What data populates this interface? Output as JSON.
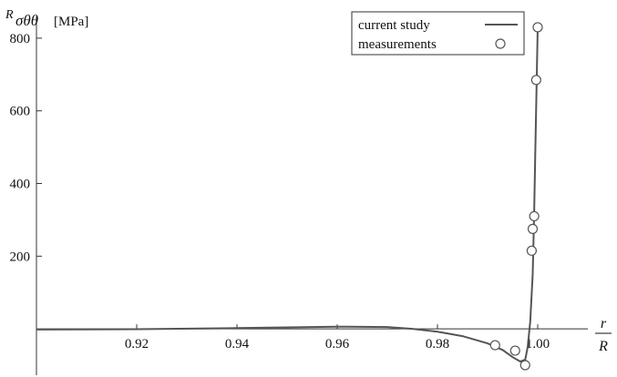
{
  "chart_data": {
    "type": "line",
    "ylabel_symbol": "R",
    "ylabel_subscript": "σθθ",
    "ylabel_unit": "[MPa]",
    "xlabel_numerator": "r",
    "xlabel_denominator": "R",
    "xlim": [
      0.9,
      1.01
    ],
    "ylim": [
      -110,
      880
    ],
    "x_ticks": [
      0.92,
      0.94,
      0.96,
      0.98,
      1.0
    ],
    "x_tick_labels": [
      "0.92",
      "0.94",
      "0.96",
      "0.98",
      "1.00"
    ],
    "y_ticks": [
      200,
      400,
      600,
      800
    ],
    "y_tick_labels": [
      "200",
      "400",
      "600",
      "800"
    ],
    "grid": false,
    "legend_position": "top-right",
    "series": [
      {
        "name": "current study",
        "kind": "line",
        "color": "#555555",
        "x": [
          0.9,
          0.92,
          0.94,
          0.95,
          0.96,
          0.97,
          0.975,
          0.98,
          0.985,
          0.99,
          0.993,
          0.995,
          0.9965,
          0.9975,
          0.998,
          0.9985,
          0.999,
          0.9993,
          0.9995,
          0.9997,
          1.0
        ],
        "y": [
          -2,
          -1,
          2,
          4,
          6,
          5,
          0,
          -8,
          -20,
          -40,
          -58,
          -78,
          -90,
          -85,
          -50,
          20,
          150,
          320,
          480,
          620,
          830
        ]
      },
      {
        "name": "measurements",
        "kind": "scatter",
        "color": "#555555",
        "x": [
          0.9915,
          0.9955,
          0.9975,
          0.9988,
          0.999,
          0.9993,
          0.9997,
          1.0
        ],
        "y": [
          -45,
          -60,
          -100,
          215,
          275,
          310,
          685,
          830
        ]
      }
    ]
  }
}
